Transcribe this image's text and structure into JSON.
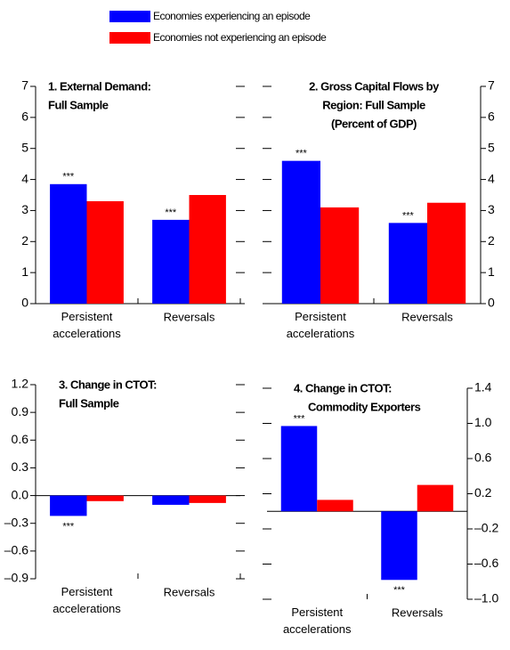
{
  "chart_data": [
    {
      "type": "bar",
      "title": [
        "1. External Demand:",
        "Full Sample"
      ],
      "categories": [
        "Persistent accelerations",
        "Reversals"
      ],
      "series": [
        {
          "name": "Economies experiencing an episode",
          "color": "#0000ff",
          "values": [
            3.85,
            2.7
          ],
          "significance": [
            "***",
            "***"
          ]
        },
        {
          "name": "Economies not experiencing an episode",
          "color": "#ff0000",
          "values": [
            3.3,
            3.5
          ]
        }
      ],
      "ylim": [
        0,
        7
      ],
      "yticks": [
        0,
        1,
        2,
        3,
        4,
        5,
        6,
        7
      ],
      "y_axis_side": "left"
    },
    {
      "type": "bar",
      "title": [
        "2. Gross Capital Flows by",
        "Region: Full Sample",
        "(Percent of GDP)"
      ],
      "categories": [
        "Persistent accelerations",
        "Reversals"
      ],
      "series": [
        {
          "color": "#0000ff",
          "values": [
            4.6,
            2.6
          ],
          "significance": [
            "***",
            "***"
          ]
        },
        {
          "color": "#ff0000",
          "values": [
            3.1,
            3.25
          ]
        }
      ],
      "ylim": [
        0,
        7
      ],
      "yticks": [
        0,
        1,
        2,
        3,
        4,
        5,
        6,
        7
      ],
      "y_axis_side": "right"
    },
    {
      "type": "bar",
      "title": [
        "3. Change in CTOT:",
        "Full Sample"
      ],
      "categories": [
        "Persistent accelerations",
        "Reversals"
      ],
      "series": [
        {
          "color": "#0000ff",
          "values": [
            -0.22,
            -0.1
          ],
          "significance": [
            "***",
            null
          ]
        },
        {
          "color": "#ff0000",
          "values": [
            -0.06,
            -0.08
          ]
        }
      ],
      "ylim": [
        -0.9,
        1.2
      ],
      "yticks": [
        {
          "value": -0.9,
          "label": "–0.9"
        },
        {
          "value": -0.6,
          "label": "–0.6"
        },
        {
          "value": -0.3,
          "label": "–0.3"
        },
        {
          "value": 0,
          "label": "0.0"
        },
        0.3,
        0.6,
        0.9,
        1.2
      ],
      "y_axis_side": "left"
    },
    {
      "type": "bar",
      "title": [
        "4. Change in CTOT:",
        "Commodity Exporters"
      ],
      "categories": [
        "Persistent accelerations",
        "Reversals"
      ],
      "series": [
        {
          "color": "#0000ff",
          "values": [
            0.97,
            -0.78
          ],
          "significance": [
            "***",
            "***"
          ]
        },
        {
          "color": "#ff0000",
          "values": [
            0.13,
            0.3
          ]
        }
      ],
      "ylim": [
        -1.0,
        1.4
      ],
      "yticks": [
        {
          "value": -1.0,
          "label": "–1.0"
        },
        {
          "value": -0.6,
          "label": "–0.6"
        },
        {
          "value": -0.2,
          "label": "–0.2"
        },
        0.2,
        0.6,
        {
          "value": 1.0,
          "label": "1.0"
        },
        1.4
      ],
      "y_axis_side": "right"
    }
  ]
}
